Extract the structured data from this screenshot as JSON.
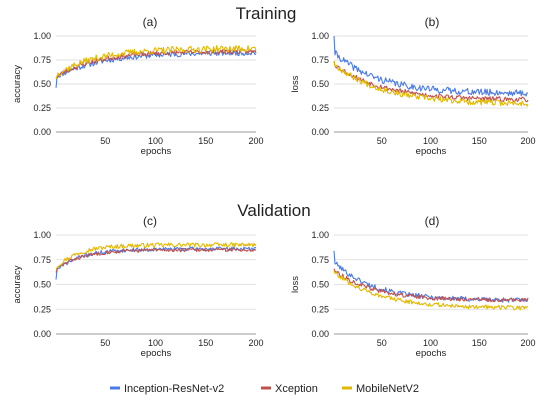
{
  "figure": {
    "training_title": "Training",
    "validation_title": "Validation",
    "legend": [
      {
        "label": "Inception-ResNet-v2",
        "color": "#4a7be8"
      },
      {
        "label": "Xception",
        "color": "#c0504d"
      },
      {
        "label": "MobileNetV2",
        "color": "#e3b800"
      }
    ]
  },
  "chart_data": [
    {
      "panel": "(a)",
      "type": "line",
      "xlabel": "epochs",
      "ylabel": "accuracy",
      "xlim": [
        1,
        200
      ],
      "ylim": [
        0,
        1
      ],
      "xticks": [
        50,
        100,
        150,
        200
      ],
      "yticks": [
        "0.00",
        "0.25",
        "0.50",
        "0.75",
        "1.00"
      ],
      "grid": true,
      "series": [
        {
          "name": "Inception-ResNet-v2",
          "color": "#4a7be8",
          "start": 0.46,
          "first": 0.58,
          "plateau": 0.83,
          "tau": 45,
          "noise": 0.03,
          "seed": 11
        },
        {
          "name": "Xception",
          "color": "#c0504d",
          "start": 0.55,
          "first": 0.58,
          "plateau": 0.84,
          "tau": 40,
          "noise": 0.025,
          "seed": 23
        },
        {
          "name": "MobileNetV2",
          "color": "#e3b800",
          "start": 0.55,
          "first": 0.6,
          "plateau": 0.87,
          "tau": 40,
          "noise": 0.035,
          "seed": 37
        }
      ]
    },
    {
      "panel": "(b)",
      "type": "line",
      "xlabel": "epochs",
      "ylabel": "loss",
      "xlim": [
        1,
        200
      ],
      "ylim": [
        0,
        1
      ],
      "xticks": [
        50,
        100,
        150,
        200
      ],
      "yticks": [
        "0.00",
        "0.25",
        "0.50",
        "0.75",
        "1.00"
      ],
      "grid": true,
      "series": [
        {
          "name": "Inception-ResNet-v2",
          "color": "#4a7be8",
          "start": 1.0,
          "first": 0.82,
          "plateau": 0.4,
          "tau": 45,
          "noise": 0.035,
          "seed": 41
        },
        {
          "name": "Xception",
          "color": "#c0504d",
          "start": 0.74,
          "first": 0.7,
          "plateau": 0.33,
          "tau": 50,
          "noise": 0.025,
          "seed": 53
        },
        {
          "name": "MobileNetV2",
          "color": "#e3b800",
          "start": 0.74,
          "first": 0.7,
          "plateau": 0.29,
          "tau": 50,
          "noise": 0.03,
          "seed": 67
        }
      ]
    },
    {
      "panel": "(c)",
      "type": "line",
      "xlabel": "epochs",
      "ylabel": "accuracy",
      "xlim": [
        1,
        200
      ],
      "ylim": [
        0,
        1
      ],
      "xticks": [
        50,
        100,
        150,
        200
      ],
      "yticks": [
        "0.00",
        "0.25",
        "0.50",
        "0.75",
        "1.00"
      ],
      "grid": true,
      "series": [
        {
          "name": "Inception-ResNet-v2",
          "color": "#4a7be8",
          "start": 0.55,
          "first": 0.65,
          "plateau": 0.86,
          "tau": 25,
          "noise": 0.02,
          "seed": 71
        },
        {
          "name": "Xception",
          "color": "#c0504d",
          "start": 0.62,
          "first": 0.66,
          "plateau": 0.85,
          "tau": 25,
          "noise": 0.018,
          "seed": 83
        },
        {
          "name": "MobileNetV2",
          "color": "#e3b800",
          "start": 0.66,
          "first": 0.68,
          "plateau": 0.9,
          "tau": 22,
          "noise": 0.022,
          "seed": 97
        }
      ]
    },
    {
      "panel": "(d)",
      "type": "line",
      "xlabel": "epochs",
      "ylabel": "loss",
      "xlim": [
        1,
        200
      ],
      "ylim": [
        0,
        1
      ],
      "xticks": [
        50,
        100,
        150,
        200
      ],
      "yticks": [
        "0.00",
        "0.25",
        "0.50",
        "0.75",
        "1.00"
      ],
      "grid": true,
      "series": [
        {
          "name": "Inception-ResNet-v2",
          "color": "#4a7be8",
          "start": 0.84,
          "first": 0.72,
          "plateau": 0.34,
          "tau": 40,
          "noise": 0.025,
          "seed": 101
        },
        {
          "name": "Xception",
          "color": "#c0504d",
          "start": 0.66,
          "first": 0.64,
          "plateau": 0.34,
          "tau": 40,
          "noise": 0.02,
          "seed": 113
        },
        {
          "name": "MobileNetV2",
          "color": "#e3b800",
          "start": 0.64,
          "first": 0.62,
          "plateau": 0.26,
          "tau": 45,
          "noise": 0.022,
          "seed": 127
        }
      ]
    }
  ]
}
